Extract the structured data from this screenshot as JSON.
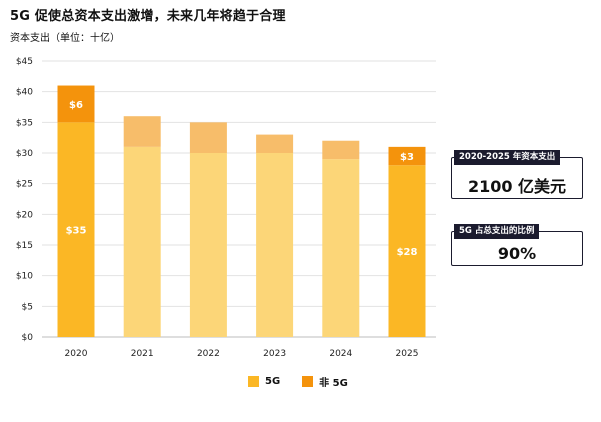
{
  "title": "5G 促使总资本支出激增，未来几年将趋于合理",
  "subtitle": "资本支出（单位：十亿）",
  "colors": {
    "fiveg": "#fbb725",
    "non5g": "#f4930c",
    "fiveg_light": "#fcd678",
    "non5g_light": "#f7bd6a",
    "grid": "#e2e2e2",
    "callout_dark": "#1b1b2e"
  },
  "chart_data": {
    "type": "bar",
    "stacked": true,
    "categories": [
      "2020",
      "2021",
      "2022",
      "2023",
      "2024",
      "2025"
    ],
    "series": [
      {
        "name": "5G",
        "values": [
          35,
          31,
          30,
          30,
          29,
          28
        ]
      },
      {
        "name": "非 5G",
        "values": [
          6,
          5,
          5,
          3,
          3,
          3
        ]
      }
    ],
    "highlighted_categories": [
      "2020",
      "2025"
    ],
    "data_labels": [
      {
        "category": "2020",
        "series": "5G",
        "text": "$35"
      },
      {
        "category": "2020",
        "series": "非 5G",
        "text": "$6"
      },
      {
        "category": "2025",
        "series": "5G",
        "text": "$28"
      },
      {
        "category": "2025",
        "series": "非 5G",
        "text": "$3"
      }
    ],
    "y_ticks": [
      "$0",
      "$5",
      "$10",
      "$15",
      "$20",
      "$25",
      "$30",
      "$35",
      "$40",
      "$45"
    ],
    "ylim": [
      0,
      45
    ],
    "xlabel": "",
    "ylabel": "",
    "grid": true,
    "legend_position": "bottom"
  },
  "legend": [
    {
      "label": "5G"
    },
    {
      "label": "非 5G"
    }
  ],
  "callouts": [
    {
      "tag": "2020-2025 年资本支出",
      "value": "2100 亿美元"
    },
    {
      "tag": "5G 占总支出的比例",
      "value": "90%"
    }
  ]
}
